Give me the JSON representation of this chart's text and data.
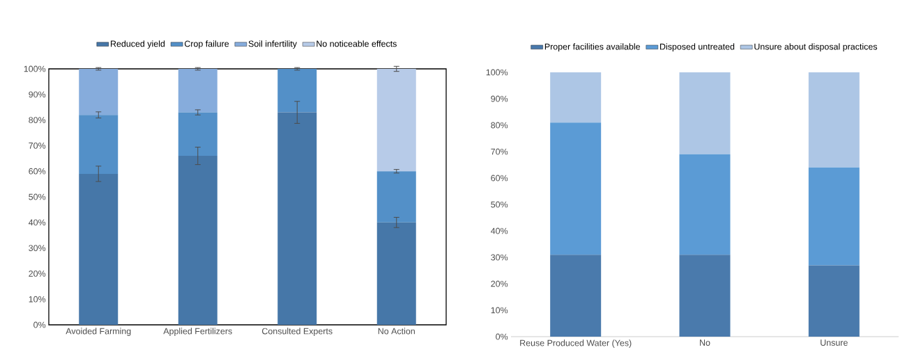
{
  "chart_data": [
    {
      "type": "bar",
      "stacked": true,
      "legend": "top",
      "categories": [
        "Avoided Farming",
        "Applied Fertilizers",
        "Consulted Experts",
        "No Action"
      ],
      "ylim": [
        0,
        100
      ],
      "yticks": [
        {
          "value": 0,
          "label": "0%"
        },
        {
          "value": 10,
          "label": "10%"
        },
        {
          "value": 20,
          "label": "20%"
        },
        {
          "value": 30,
          "label": "30%"
        },
        {
          "value": 40,
          "label": "40%"
        },
        {
          "value": 50,
          "label": "50%"
        },
        {
          "value": 60,
          "label": "60%"
        },
        {
          "value": 70,
          "label": "70%"
        },
        {
          "value": 80,
          "label": "80%"
        },
        {
          "value": 90,
          "label": "90%"
        },
        {
          "value": 100,
          "label": "100%"
        }
      ],
      "series": [
        {
          "name": "Reduced yield",
          "color": "#4677a8",
          "values": [
            59,
            66,
            83,
            40
          ],
          "errors": [
            3,
            3.4,
            4.3,
            2
          ]
        },
        {
          "name": "Crop failure",
          "color": "#5390c8",
          "values": [
            23,
            17,
            17,
            20
          ],
          "errors": [
            1.2,
            1,
            0.5,
            0.7
          ]
        },
        {
          "name": "Soil infertility",
          "color": "#86acdc",
          "values": [
            18,
            17,
            0,
            0
          ],
          "errors": [
            0.5,
            0.5,
            null,
            null
          ]
        },
        {
          "name": "No noticeable effects",
          "color": "#b7cbe8",
          "values": [
            0,
            0,
            0,
            40
          ],
          "errors": [
            null,
            null,
            null,
            1
          ]
        }
      ]
    },
    {
      "type": "bar",
      "stacked": true,
      "legend": "top",
      "categories": [
        "Reuse Produced Water (Yes)",
        "No",
        "Unsure"
      ],
      "ylim": [
        0,
        100
      ],
      "yticks": [
        {
          "value": 0,
          "label": "0%"
        },
        {
          "value": 10,
          "label": "10%"
        },
        {
          "value": 20,
          "label": "20%"
        },
        {
          "value": 30,
          "label": "30%"
        },
        {
          "value": 40,
          "label": "40%"
        },
        {
          "value": 50,
          "label": "50%"
        },
        {
          "value": 60,
          "label": "60%"
        },
        {
          "value": 70,
          "label": "70%"
        },
        {
          "value": 80,
          "label": "80%"
        },
        {
          "value": 90,
          "label": "90%"
        },
        {
          "value": 100,
          "label": "100%"
        }
      ],
      "series": [
        {
          "name": "Proper facilities available",
          "color": "#4a7aac",
          "values": [
            31,
            31,
            27
          ]
        },
        {
          "name": "Disposed untreated",
          "color": "#5b9bd5",
          "values": [
            50,
            38,
            37
          ]
        },
        {
          "name": "Unsure about disposal practices",
          "color": "#adc6e5",
          "values": [
            19,
            31,
            36
          ]
        }
      ]
    }
  ]
}
